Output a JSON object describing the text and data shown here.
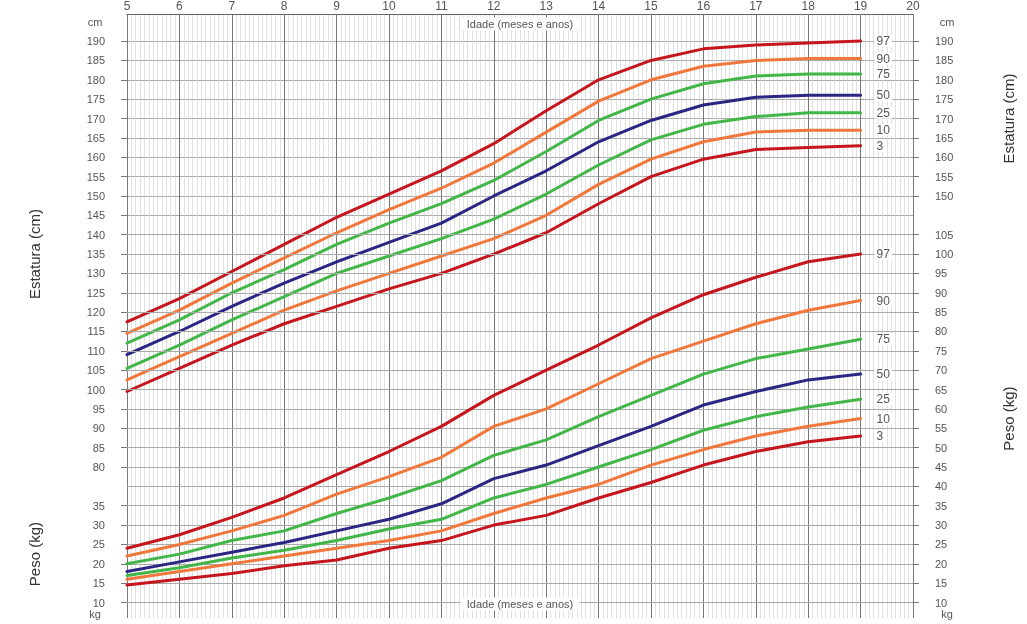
{
  "chart_data": [
    {
      "type": "line",
      "xlabel": "Idade (meses e anos)",
      "ylabel": "Estatura (cm)",
      "y2label": "Estatura (cm)",
      "annotations": [
        "cm",
        "cm"
      ],
      "x": [
        5,
        6,
        7,
        8,
        9,
        10,
        11,
        12,
        13,
        14,
        15,
        16,
        17,
        18,
        19
      ],
      "xlim": [
        5,
        20
      ],
      "xticks": [
        5,
        6,
        7,
        8,
        9,
        10,
        11,
        12,
        13,
        14,
        15,
        16,
        17,
        18,
        19,
        20
      ],
      "ylim": [
        41,
        197
      ],
      "yticks": [
        80,
        85,
        90,
        95,
        100,
        105,
        110,
        115,
        120,
        125,
        130,
        135,
        140,
        145,
        150,
        155,
        160,
        165,
        170,
        175,
        180,
        185,
        190
      ],
      "y2lim": [
        41,
        197
      ],
      "y2ticks": [
        150,
        155,
        160,
        165,
        170,
        175,
        180,
        185,
        190
      ],
      "grid": true,
      "marker": "none",
      "line_style": "solid",
      "series": [
        {
          "name": "97",
          "color": "#c4161c",
          "values": [
            117.5,
            123.5,
            130.5,
            137.5,
            144.5,
            150.5,
            156.5,
            163.5,
            172,
            180,
            185,
            188,
            189,
            189.5,
            190
          ]
        },
        {
          "name": "90",
          "color": "#f0783c",
          "values": [
            114.5,
            120.5,
            127.5,
            134,
            140.5,
            146.5,
            152,
            158.5,
            166.5,
            174.5,
            180,
            183.5,
            185,
            185.5,
            185.5
          ]
        },
        {
          "name": "75",
          "color": "#43b649",
          "values": [
            112,
            118,
            125,
            131,
            137.5,
            143,
            148,
            154,
            161.5,
            169.5,
            175,
            179,
            181,
            181.5,
            181.5
          ]
        },
        {
          "name": "50",
          "color": "#2b2583",
          "values": [
            109,
            115,
            121.5,
            127.5,
            133,
            138,
            143,
            150,
            156.5,
            164,
            169.5,
            173.5,
            175.5,
            176,
            176
          ]
        },
        {
          "name": "25",
          "color": "#43b649",
          "values": [
            105.5,
            111.5,
            118,
            124,
            130,
            134.5,
            139,
            144,
            150.5,
            158,
            164.5,
            168.5,
            170.5,
            171.5,
            171.5
          ]
        },
        {
          "name": "10",
          "color": "#f0783c",
          "values": [
            102.5,
            108.5,
            114.5,
            120.5,
            125.5,
            130,
            134.5,
            139,
            145,
            153,
            159.5,
            164,
            166.5,
            167,
            167
          ]
        },
        {
          "name": "3",
          "color": "#c4161c",
          "values": [
            99.5,
            105.5,
            111.5,
            117,
            121.5,
            126,
            130,
            135,
            140.5,
            148,
            155,
            159.5,
            162,
            162.5,
            163
          ]
        }
      ]
    },
    {
      "type": "line",
      "xlabel": "Idade (meses e anos)",
      "ylabel": "Peso (kg)",
      "y2label": "Peso (kg)",
      "annotations": [
        "kg",
        "kg"
      ],
      "x": [
        5,
        6,
        7,
        8,
        9,
        10,
        11,
        12,
        13,
        14,
        15,
        16,
        17,
        18,
        19
      ],
      "xlim": [
        5,
        20
      ],
      "tick_labels": "y",
      "ylim": [
        6,
        162
      ],
      "yticks": [
        10,
        15,
        20,
        25,
        30,
        35
      ],
      "y2lim": [
        6,
        162
      ],
      "y2ticks": [
        10,
        15,
        20,
        25,
        30,
        35,
        40,
        45,
        50,
        55,
        60,
        65,
        70,
        75,
        80,
        85,
        90,
        95,
        100,
        105
      ],
      "grid": true,
      "marker": "none",
      "line_style": "solid",
      "series": [
        {
          "name": "97",
          "color": "#c4161c",
          "values": [
            24,
            27.5,
            32,
            37,
            43,
            49,
            55.5,
            63.5,
            70,
            76.5,
            83.5,
            89.5,
            94,
            98,
            100
          ]
        },
        {
          "name": "90",
          "color": "#f0783c",
          "values": [
            22,
            25,
            28.5,
            32.5,
            38,
            42.5,
            47.5,
            55.5,
            60,
            66.5,
            73,
            77.5,
            82,
            85.5,
            88
          ]
        },
        {
          "name": "75",
          "color": "#43b649",
          "values": [
            20,
            22.5,
            26,
            28.5,
            33,
            37,
            41.5,
            48,
            52,
            58,
            63.5,
            69,
            73,
            75.5,
            78
          ]
        },
        {
          "name": "50",
          "color": "#2b2583",
          "values": [
            18,
            20.5,
            23,
            25.5,
            28.5,
            31.5,
            35.5,
            42,
            45.5,
            50.5,
            55.5,
            61,
            64.5,
            67.5,
            69
          ]
        },
        {
          "name": "25",
          "color": "#43b649",
          "values": [
            17,
            19,
            21.5,
            23.5,
            26,
            29,
            31.5,
            37,
            40.5,
            45,
            49.5,
            54.5,
            58,
            60.5,
            62.5
          ]
        },
        {
          "name": "10",
          "color": "#f0783c",
          "values": [
            16,
            18,
            20,
            22,
            24,
            26,
            28.5,
            33,
            37,
            40.5,
            45.5,
            49.5,
            53,
            55.5,
            57.5
          ]
        },
        {
          "name": "3",
          "color": "#c4161c",
          "values": [
            14.5,
            16,
            17.5,
            19.5,
            21,
            24,
            26,
            30,
            32.5,
            37,
            41,
            45.5,
            49,
            51.5,
            53
          ]
        }
      ]
    }
  ]
}
